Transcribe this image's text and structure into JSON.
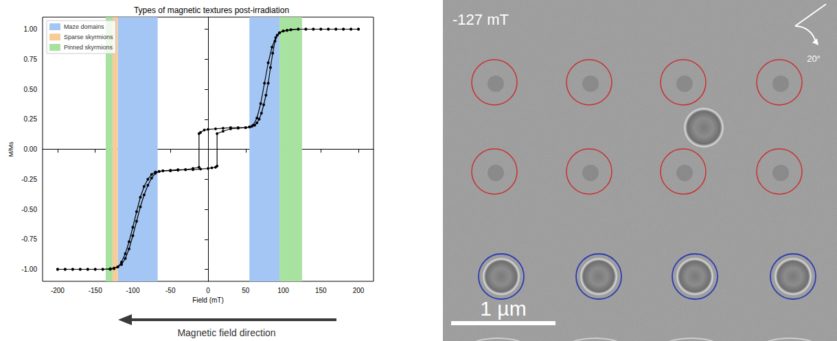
{
  "chart_data": {
    "type": "line",
    "title": "Types of magnetic textures post-irradiation",
    "x_label": "Field (mT)",
    "y_label": "M/Ms",
    "xlim": [
      -220,
      220
    ],
    "xticks": [
      -200,
      -150,
      -100,
      -50,
      0,
      50,
      100,
      150,
      200
    ],
    "ylim": [
      -1.1,
      1.1
    ],
    "yticks": [
      {
        "value": -1,
        "label": "-1.00"
      },
      {
        "value": -0.75,
        "label": "-0.75"
      },
      {
        "value": -0.5,
        "label": "-0.50"
      },
      {
        "value": -0.25,
        "label": "-0.25"
      },
      {
        "value": 0,
        "label": "0.00"
      },
      {
        "value": 0.25,
        "label": "0.25"
      },
      {
        "value": 0.5,
        "label": "0.50"
      },
      {
        "value": 0.75,
        "label": "0.75"
      },
      {
        "value": 1,
        "label": "1.00"
      }
    ],
    "grid": false,
    "legend": "upper left",
    "regions": [
      {
        "name": "Maze domains",
        "color": "#a4c6f4",
        "ranges": [
          [
            -120,
            -67
          ],
          [
            55,
            95
          ]
        ]
      },
      {
        "name": "Sparse skyrmions",
        "color": "#f8cb97",
        "ranges": [
          [
            -127,
            -120
          ]
        ]
      },
      {
        "name": "Pinned skyrmions",
        "color": "#a8e2a0",
        "ranges": [
          [
            -136,
            -127
          ],
          [
            95,
            125
          ]
        ]
      }
    ],
    "series": [
      {
        "color": "#000000",
        "marker": "circle",
        "line_style": "solid",
        "x": [
          200,
          190,
          180,
          170,
          160,
          150,
          140,
          130,
          120,
          110,
          105,
          100,
          95,
          92,
          89,
          86,
          83,
          80,
          77,
          74,
          71,
          68,
          65,
          62,
          58,
          55,
          50,
          40,
          30,
          20,
          10,
          0,
          -5,
          -10,
          -12,
          -12,
          -20,
          -30,
          -40,
          -50,
          -60,
          -65,
          -70,
          -75,
          -80,
          -85,
          -90,
          -95,
          -100,
          -105,
          -110,
          -115,
          -120,
          -125,
          -130,
          -140,
          -150,
          -160,
          -170,
          -180,
          -190,
          -200
        ],
        "values": [
          1,
          1,
          1,
          1,
          1,
          1,
          1,
          1,
          1,
          0.995,
          0.99,
          0.985,
          0.97,
          0.95,
          0.9,
          0.8,
          0.68,
          0.55,
          0.45,
          0.37,
          0.3,
          0.25,
          0.22,
          0.2,
          0.19,
          0.185,
          0.18,
          0.18,
          0.18,
          0.175,
          0.17,
          0.165,
          0.16,
          0.14,
          0.13,
          -0.15,
          -0.16,
          -0.17,
          -0.17,
          -0.175,
          -0.18,
          -0.185,
          -0.2,
          -0.24,
          -0.3,
          -0.38,
          -0.48,
          -0.6,
          -0.72,
          -0.83,
          -0.91,
          -0.96,
          -0.98,
          -0.99,
          -0.995,
          -1,
          -1,
          -1,
          -1,
          -1,
          -1,
          -1
        ]
      },
      {
        "color": "#000000",
        "marker": "circle",
        "line_style": "solid",
        "x": [
          -200,
          -190,
          -180,
          -170,
          -160,
          -150,
          -140,
          -130,
          -125,
          -120,
          -115,
          -110,
          -105,
          -100,
          -95,
          -90,
          -85,
          -80,
          -75,
          -70,
          -65,
          -60,
          -50,
          -40,
          -30,
          -20,
          -10,
          0,
          5,
          10,
          12,
          12,
          20,
          30,
          40,
          50,
          55,
          60,
          65,
          70,
          75,
          80,
          85,
          90,
          95,
          100,
          105,
          110,
          120,
          130,
          140,
          150,
          160,
          170,
          180,
          190,
          200
        ],
        "values": [
          -1,
          -1,
          -1,
          -1,
          -1,
          -1,
          -1,
          -1,
          -0.995,
          -0.98,
          -0.94,
          -0.87,
          -0.77,
          -0.65,
          -0.52,
          -0.4,
          -0.31,
          -0.25,
          -0.21,
          -0.19,
          -0.185,
          -0.18,
          -0.18,
          -0.175,
          -0.17,
          -0.17,
          -0.165,
          -0.16,
          -0.155,
          -0.15,
          -0.14,
          0.13,
          0.15,
          0.17,
          0.175,
          0.18,
          0.185,
          0.2,
          0.26,
          0.38,
          0.55,
          0.72,
          0.85,
          0.93,
          0.97,
          0.985,
          0.99,
          0.995,
          1,
          1,
          1,
          1,
          1,
          1,
          1,
          1,
          1
        ]
      }
    ],
    "annotation": "Magnetic field direction"
  },
  "image_panel": {
    "field_label": "-127 mT",
    "angle_label": "20°",
    "scale_label": "1 µm"
  }
}
